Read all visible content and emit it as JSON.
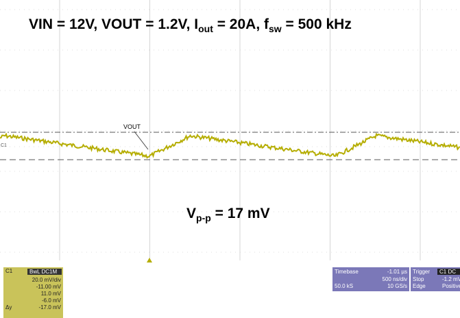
{
  "title": {
    "part1": "VIN = 12V, VOUT = 1.2V, I",
    "sub1": "out",
    "part2": " = 20A, f",
    "sub2": "sw",
    "part3": " = 500 kHz"
  },
  "trace": {
    "channel": "C1",
    "marker": "VOUT"
  },
  "ripple": {
    "main": "V",
    "sub": "p-p",
    "rest": " = 17 mV"
  },
  "channel_panel": {
    "name": "C1",
    "coupling": "BwL DC1M",
    "scale": "20.0 mV/div",
    "offset": "-11.00 mV",
    "cursor1": "11.0 mV",
    "cursor2": "-6.0 mV",
    "delta_label": "Δy",
    "delta": "-17.0 mV"
  },
  "timebase_panel": {
    "label": "Timebase",
    "delay": "-1.01 µs",
    "scale": "500 ns/div",
    "samples": "50.0 kS",
    "rate": "10 GS/s"
  },
  "trigger_panel": {
    "label": "Trigger",
    "source": "C1 DC",
    "mode": "Stop",
    "level": "-1.2 mV",
    "type": "Edge",
    "slope": "Positive"
  }
}
